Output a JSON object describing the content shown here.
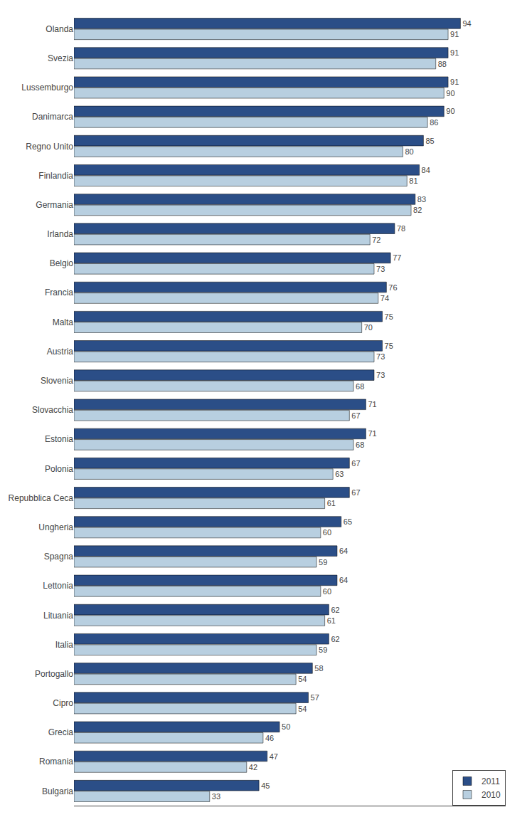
{
  "chart_data": {
    "type": "bar",
    "orientation": "horizontal",
    "categories": [
      "Olanda",
      "Svezia",
      "Lussemburgo",
      "Danimarca",
      "Regno Unito",
      "Finlandia",
      "Germania",
      "Irlanda",
      "Belgio",
      "Francia",
      "Malta",
      "Austria",
      "Slovenia",
      "Slovacchia",
      "Estonia",
      "Polonia",
      "Repubblica Ceca",
      "Ungheria",
      "Spagna",
      "Lettonia",
      "Lituania",
      "Italia",
      "Portogallo",
      "Cipro",
      "Grecia",
      "Romania",
      "Bulgaria"
    ],
    "series": [
      {
        "name": "2011",
        "color": "#2b4e87",
        "values": [
          94,
          91,
          91,
          90,
          85,
          84,
          83,
          78,
          77,
          76,
          75,
          75,
          73,
          71,
          71,
          67,
          67,
          65,
          64,
          64,
          62,
          62,
          58,
          57,
          50,
          47,
          45
        ]
      },
      {
        "name": "2010",
        "color": "#b8cfe0",
        "values": [
          91,
          88,
          90,
          86,
          80,
          81,
          82,
          72,
          73,
          74,
          70,
          73,
          68,
          67,
          68,
          63,
          61,
          60,
          59,
          60,
          61,
          59,
          54,
          54,
          46,
          42,
          33
        ]
      }
    ],
    "xlim": [
      0,
      105
    ],
    "tick_labels": "y",
    "data_labels": true,
    "legend": "lower right",
    "grid": false
  }
}
